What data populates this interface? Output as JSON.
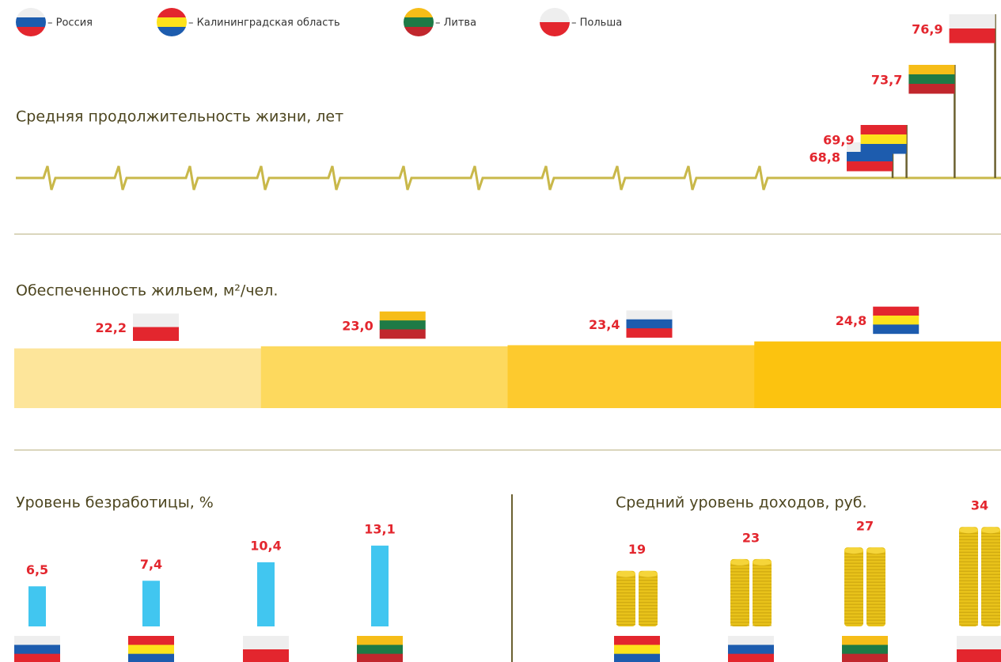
{
  "legend": [
    {
      "label": "– Россия",
      "colors": [
        "#eeeeee",
        "#1d5cae",
        "#e3262e"
      ]
    },
    {
      "label": "– Калининградская область",
      "colors": [
        "#e3262e",
        "#fde21b",
        "#1d5cae"
      ]
    },
    {
      "label": "– Литва",
      "colors": [
        "#f6bd18",
        "#1e7a46",
        "#c1272d"
      ]
    },
    {
      "label": "– Польша",
      "colors": [
        "#eeeeee",
        "#e3262e"
      ]
    }
  ],
  "chart_data": [
    {
      "type": "flagpole",
      "title": "Средняя продолжительность жизни, лет",
      "values": [
        68.8,
        69.9,
        73.7,
        76.9
      ],
      "value_labels": [
        "68,8",
        "69,9",
        "73,7",
        "76,9"
      ],
      "flags": [
        0,
        1,
        2,
        3
      ],
      "color": "#c9b84a"
    },
    {
      "type": "step",
      "title": "Обеспеченность жильем, м²/чел.",
      "values": [
        22.2,
        23.0,
        23.4,
        24.8
      ],
      "value_labels": [
        "22,2",
        "23,0",
        "23,4",
        "24,8"
      ],
      "flags": [
        3,
        2,
        0,
        1
      ],
      "colors": [
        "#fde59a",
        "#fdd95e",
        "#fdca2e",
        "#fcc30f"
      ]
    },
    {
      "type": "bar",
      "title": "Уровень безработицы, %",
      "values": [
        6.5,
        7.4,
        10.4,
        13.1
      ],
      "value_labels": [
        "6,5",
        "7,4",
        "10,4",
        "13,1"
      ],
      "flags": [
        0,
        1,
        3,
        2
      ],
      "color": "#41c6f0"
    },
    {
      "type": "coins",
      "title": "Средний уровень доходов, руб.",
      "values": [
        19,
        23,
        27,
        34
      ],
      "flags": [
        1,
        0,
        2,
        3
      ],
      "color": "#e8c21a"
    }
  ]
}
